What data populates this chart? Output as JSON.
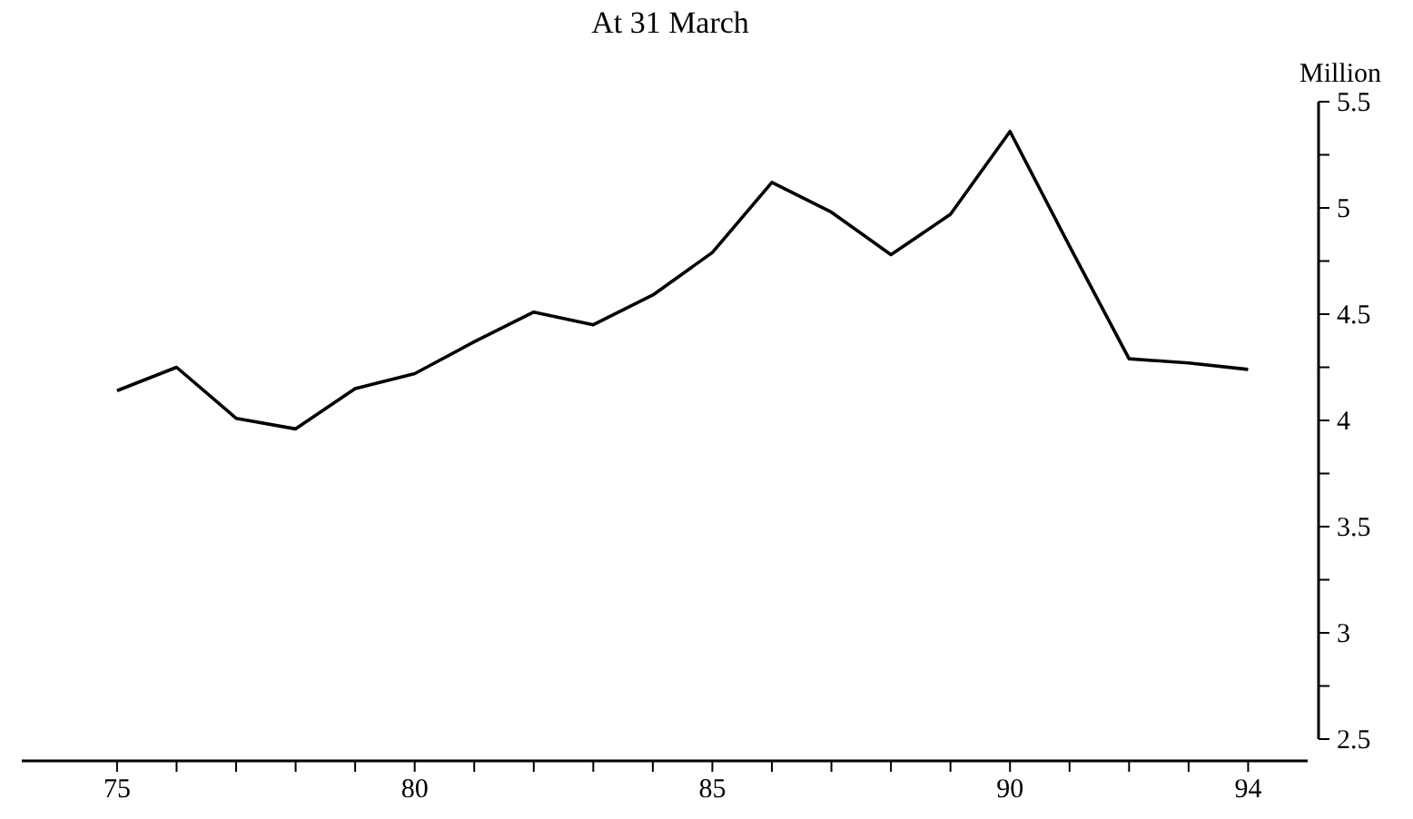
{
  "chart_data": {
    "type": "line",
    "title": "At 31 March",
    "ylabel": "Million",
    "x": [
      75,
      76,
      77,
      78,
      79,
      80,
      81,
      82,
      83,
      84,
      85,
      86,
      87,
      88,
      89,
      90,
      91,
      92,
      93,
      94
    ],
    "series": [
      {
        "color": "#000000",
        "values": [
          4.14,
          4.25,
          4.01,
          3.96,
          4.15,
          4.22,
          4.37,
          4.51,
          4.45,
          4.59,
          4.79,
          5.12,
          4.98,
          4.78,
          4.97,
          5.36,
          4.82,
          4.29,
          4.27,
          4.24
        ]
      }
    ],
    "xlim": [
      73.4,
      95
    ],
    "xticks": [
      75,
      {
        "value": 76,
        "label": null
      },
      {
        "value": 77,
        "label": null
      },
      {
        "value": 78,
        "label": null
      },
      {
        "value": 79,
        "label": null
      },
      80,
      {
        "value": 81,
        "label": null
      },
      {
        "value": 82,
        "label": null
      },
      {
        "value": 83,
        "label": null
      },
      {
        "value": 84,
        "label": null
      },
      85,
      {
        "value": 86,
        "label": null
      },
      {
        "value": 87,
        "label": null
      },
      {
        "value": 88,
        "label": null
      },
      {
        "value": 89,
        "label": null
      },
      90,
      {
        "value": 91,
        "label": null
      },
      {
        "value": 92,
        "label": null
      },
      {
        "value": 93,
        "label": null
      },
      94
    ],
    "ylim": [
      2.5,
      5.5
    ],
    "yticks": [
      2.5,
      {
        "value": 2.75,
        "label": null
      },
      3,
      {
        "value": 3.25,
        "label": null
      },
      3.5,
      {
        "value": 3.75,
        "label": null
      },
      4,
      {
        "value": 4.25,
        "label": null
      },
      4.5,
      {
        "value": 4.75,
        "label": null
      },
      5,
      {
        "value": 5.25,
        "label": null
      },
      5.5
    ],
    "marker": "none",
    "line_style": "solid"
  }
}
